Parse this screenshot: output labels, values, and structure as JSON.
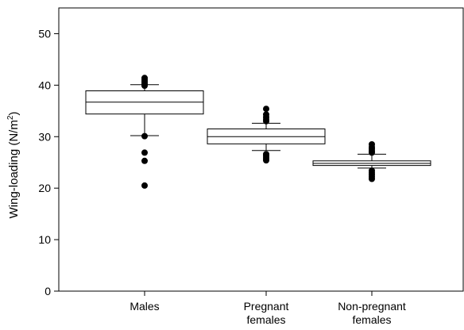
{
  "chart_data": {
    "type": "box",
    "title": "",
    "xlabel": "",
    "ylabel": "Wing-loading (N/m²)",
    "ylabel_base": "Wing-loading (N/m",
    "ylabel_sup": "2",
    "ylabel_close": ")",
    "ylim": [
      0,
      55
    ],
    "yticks": [
      0,
      10,
      20,
      30,
      40,
      50
    ],
    "grid": false,
    "categories": [
      {
        "lines": [
          "Males"
        ]
      },
      {
        "lines": [
          "Pregnant",
          "females"
        ]
      },
      {
        "lines": [
          "Non-pregnant",
          "females"
        ]
      }
    ],
    "boxes": [
      {
        "whisker_low": 30.2,
        "q1": 34.4,
        "median": 36.7,
        "q3": 38.9,
        "whisker_high": 40.1,
        "outliers": [
          20.5,
          25.3,
          26.9,
          30.1,
          39.9,
          40.2,
          40.5,
          40.8,
          41.1,
          41.4
        ]
      },
      {
        "whisker_low": 27.3,
        "q1": 28.6,
        "median": 30.0,
        "q3": 31.5,
        "whisker_high": 32.6,
        "outliers": [
          25.4,
          25.7,
          26.0,
          26.3,
          26.6,
          33.0,
          33.4,
          33.8,
          34.3,
          35.4
        ]
      },
      {
        "whisker_low": 23.9,
        "q1": 24.4,
        "median": 24.8,
        "q3": 25.3,
        "whisker_high": 26.6,
        "outliers": [
          21.8,
          22.2,
          22.6,
          23.0,
          23.4,
          26.9,
          27.2,
          27.6,
          28.0,
          28.5
        ]
      }
    ]
  }
}
